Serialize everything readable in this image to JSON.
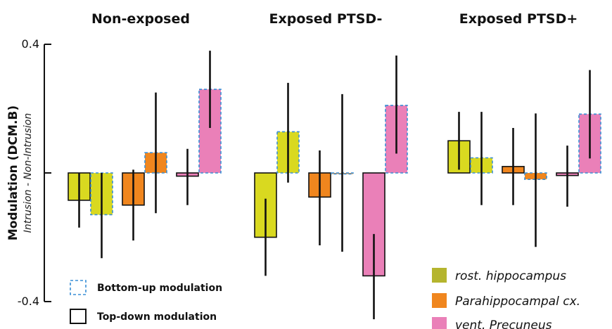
{
  "chart_data": {
    "type": "bar",
    "panels": [
      {
        "title": "Non-exposed"
      },
      {
        "title": "Exposed PTSD-"
      },
      {
        "title": "Exposed PTSD+"
      }
    ],
    "ylabel": "Modulation (DCM.B)",
    "ylabel_sub": "Intrusion - Non-Intrusion",
    "ylim": [
      -0.4,
      0.4
    ],
    "yticks": [
      {
        "value": 0.4,
        "label": "0.4"
      },
      {
        "value": -0.4,
        "label": "-0.4"
      }
    ],
    "regions": [
      {
        "name": "rost. hippocampus",
        "color": "#d9d920",
        "legend_color": "#b5b52e"
      },
      {
        "name": "Parahippocampal cx.",
        "color": "#f0861e",
        "legend_color": "#f0861e"
      },
      {
        "name": "vent. Precuneus",
        "color": "#ea80b8",
        "legend_color": "#ea80b8"
      }
    ],
    "modulation_types": [
      {
        "key": "top_down",
        "label": "Top-down modulation"
      },
      {
        "key": "bottom_up",
        "label": "Bottom-up modulation"
      }
    ],
    "series": [
      {
        "panel": 0,
        "region": 0,
        "modulation": "top_down",
        "value": -0.085,
        "err_low": -0.17,
        "err_high": 0.0
      },
      {
        "panel": 0,
        "region": 0,
        "modulation": "bottom_up",
        "value": -0.13,
        "err_low": -0.265,
        "err_high": 0.0
      },
      {
        "panel": 0,
        "region": 1,
        "modulation": "top_down",
        "value": -0.1,
        "err_low": -0.21,
        "err_high": 0.01
      },
      {
        "panel": 0,
        "region": 1,
        "modulation": "bottom_up",
        "value": 0.063,
        "err_low": -0.125,
        "err_high": 0.25
      },
      {
        "panel": 0,
        "region": 2,
        "modulation": "top_down",
        "value": -0.01,
        "err_low": -0.1,
        "err_high": 0.075
      },
      {
        "panel": 0,
        "region": 2,
        "modulation": "bottom_up",
        "value": 0.26,
        "err_low": 0.14,
        "err_high": 0.38
      },
      {
        "panel": 1,
        "region": 0,
        "modulation": "top_down",
        "value": -0.2,
        "err_low": -0.32,
        "err_high": -0.08
      },
      {
        "panel": 1,
        "region": 0,
        "modulation": "bottom_up",
        "value": 0.128,
        "err_low": -0.03,
        "err_high": 0.28
      },
      {
        "panel": 1,
        "region": 1,
        "modulation": "top_down",
        "value": -0.075,
        "err_low": -0.225,
        "err_high": 0.07
      },
      {
        "panel": 1,
        "region": 1,
        "modulation": "bottom_up",
        "value": -0.003,
        "err_low": -0.245,
        "err_high": 0.245
      },
      {
        "panel": 1,
        "region": 2,
        "modulation": "top_down",
        "value": -0.32,
        "err_low": -0.455,
        "err_high": -0.19
      },
      {
        "panel": 1,
        "region": 2,
        "modulation": "bottom_up",
        "value": 0.21,
        "err_low": 0.06,
        "err_high": 0.365
      },
      {
        "panel": 2,
        "region": 0,
        "modulation": "top_down",
        "value": 0.1,
        "err_low": 0.01,
        "err_high": 0.19
      },
      {
        "panel": 2,
        "region": 0,
        "modulation": "bottom_up",
        "value": 0.047,
        "err_low": -0.1,
        "err_high": 0.19
      },
      {
        "panel": 2,
        "region": 1,
        "modulation": "top_down",
        "value": 0.02,
        "err_low": -0.1,
        "err_high": 0.14
      },
      {
        "panel": 2,
        "region": 1,
        "modulation": "bottom_up",
        "value": -0.02,
        "err_low": -0.23,
        "err_high": 0.185
      },
      {
        "panel": 2,
        "region": 2,
        "modulation": "top_down",
        "value": -0.008,
        "err_low": -0.105,
        "err_high": 0.085
      },
      {
        "panel": 2,
        "region": 2,
        "modulation": "bottom_up",
        "value": 0.183,
        "err_low": 0.045,
        "err_high": 0.32
      }
    ]
  }
}
